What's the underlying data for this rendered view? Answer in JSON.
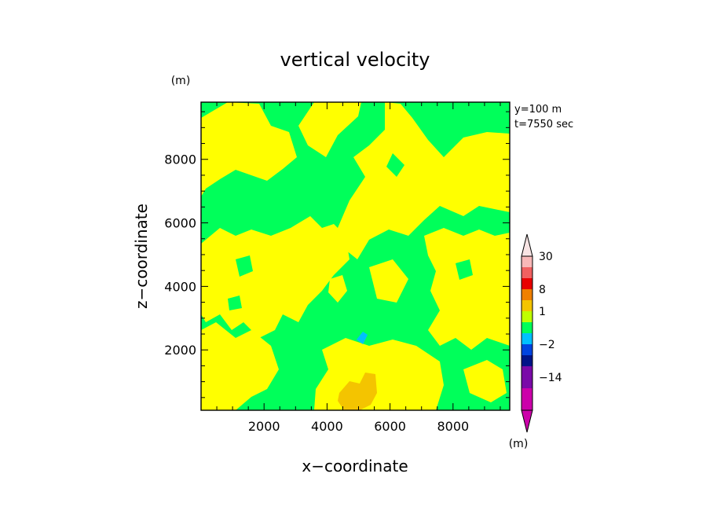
{
  "chart_data": {
    "type": "heatmap",
    "title": "vertical velocity",
    "xlabel": "x−coordinate",
    "ylabel": "z−coordinate",
    "x_unit": "(m)",
    "y_unit": "(m)",
    "colorbar_unit": "(m)",
    "annotations": [
      "y=100 m",
      "t=7550 sec"
    ],
    "xlim": [
      0,
      9800
    ],
    "ylim": [
      100,
      9800
    ],
    "xticks": [
      2000,
      4000,
      6000,
      8000
    ],
    "yticks": [
      2000,
      4000,
      6000,
      8000
    ],
    "colorbar": {
      "levels": [
        {
          "label": "",
          "color": "#cc00aa"
        },
        {
          "label": "",
          "color": "#cc00aa"
        },
        {
          "label": "−14",
          "color": "#7a0aa8"
        },
        {
          "label": "",
          "color": "#7a0aa8"
        },
        {
          "label": "",
          "color": "#001488"
        },
        {
          "label": "−2",
          "color": "#0044e0"
        },
        {
          "label": "",
          "color": "#00c0ff"
        },
        {
          "label": "",
          "color": "#00ff5a"
        },
        {
          "label": "1",
          "color": "#bfff00"
        },
        {
          "label": "",
          "color": "#f4c400"
        },
        {
          "label": "8",
          "color": "#f08000"
        },
        {
          "label": "",
          "color": "#e80000"
        },
        {
          "label": "",
          "color": "#f06060"
        },
        {
          "label": "30",
          "color": "#f8b8b8"
        }
      ],
      "arrow_top_color": "#f8e4e4",
      "arrow_bottom_color": "#cc00aa"
    },
    "fill_colors": {
      "background": "#00ff5a",
      "positive_weak": "#ffff00",
      "positive_moderate": "#f4c400",
      "negative_moderate": "#00c0ff"
    },
    "grid": false
  }
}
